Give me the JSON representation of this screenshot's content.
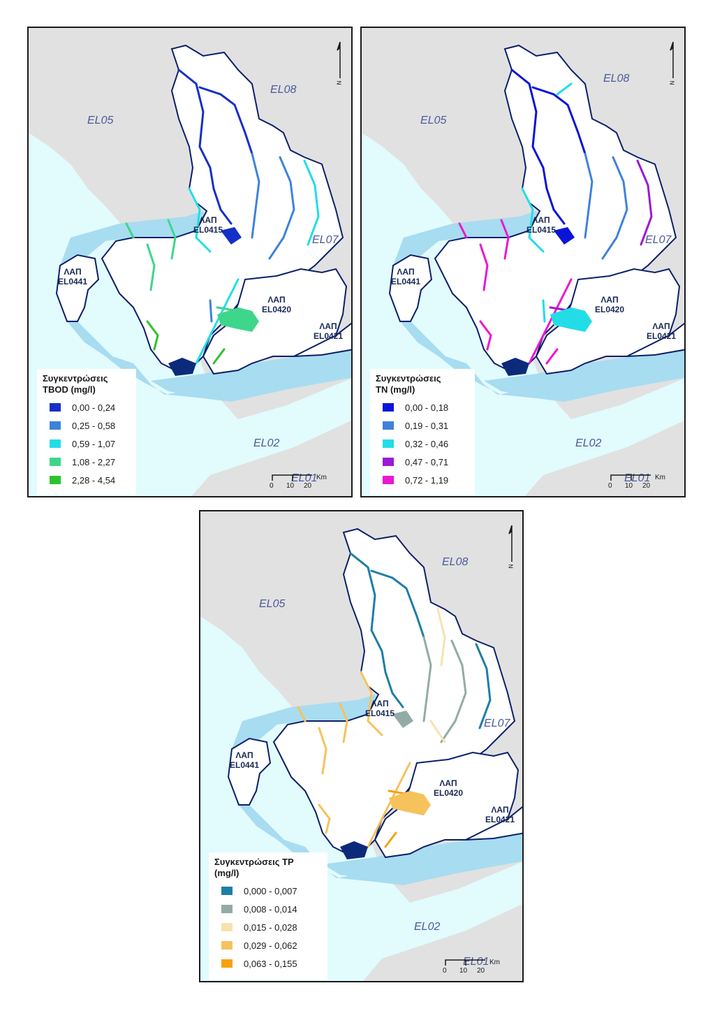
{
  "regions": {
    "el05": "EL05",
    "el08": "EL08",
    "el07": "EL07",
    "el02": "EL02",
    "el01": "EL01"
  },
  "lap_labels": {
    "el0415": [
      "ΛΑΠ",
      "EL0415"
    ],
    "el0420": [
      "ΛΑΠ",
      "EL0420"
    ],
    "el0421": [
      "ΛΑΠ",
      "EL0421"
    ],
    "el0441": [
      "ΛΑΠ",
      "EL0441"
    ]
  },
  "scale": {
    "unit": "Km",
    "ticks": [
      "0",
      "10",
      "20"
    ]
  },
  "north_label": "N",
  "maps": [
    {
      "id": "tbod",
      "legend_title_line1": "Συγκεντρώσεις",
      "legend_title_line2": "TBOD (mg/l)",
      "classes": [
        {
          "label": "0,00 - 0,24",
          "color": "#1530c8"
        },
        {
          "label": "0,25 - 0,58",
          "color": "#3f82dc"
        },
        {
          "label": "0,59 - 1,07",
          "color": "#22dde8"
        },
        {
          "label": "1,08 - 2,27",
          "color": "#3ed68a"
        },
        {
          "label": "2,28 - 4,54",
          "color": "#2ec32e"
        }
      ]
    },
    {
      "id": "tn",
      "legend_title_line1": "Συγκεντρώσεις",
      "legend_title_line2": "TN (mg/l)",
      "classes": [
        {
          "label": "0,00 - 0,18",
          "color": "#0a14d8"
        },
        {
          "label": "0,19 - 0,31",
          "color": "#3f82dc"
        },
        {
          "label": "0,32 - 0,46",
          "color": "#22dde8"
        },
        {
          "label": "0,47 - 0,71",
          "color": "#9a18d6"
        },
        {
          "label": "0,72 - 1,19",
          "color": "#ec16d2"
        }
      ]
    },
    {
      "id": "tp",
      "legend_title_line1": "Συγκεντρώσεις TP",
      "legend_title_line2": "(mg/l)",
      "classes": [
        {
          "label": "0,000 - 0,007",
          "color": "#1e7ea6"
        },
        {
          "label": "0,008 - 0,014",
          "color": "#93aba6"
        },
        {
          "label": "0,015 - 0,028",
          "color": "#f8e2b0"
        },
        {
          "label": "0,029 - 0,062",
          "color": "#f5c25c"
        },
        {
          "label": "0,063 - 0,155",
          "color": "#f5a20c"
        }
      ]
    }
  ]
}
